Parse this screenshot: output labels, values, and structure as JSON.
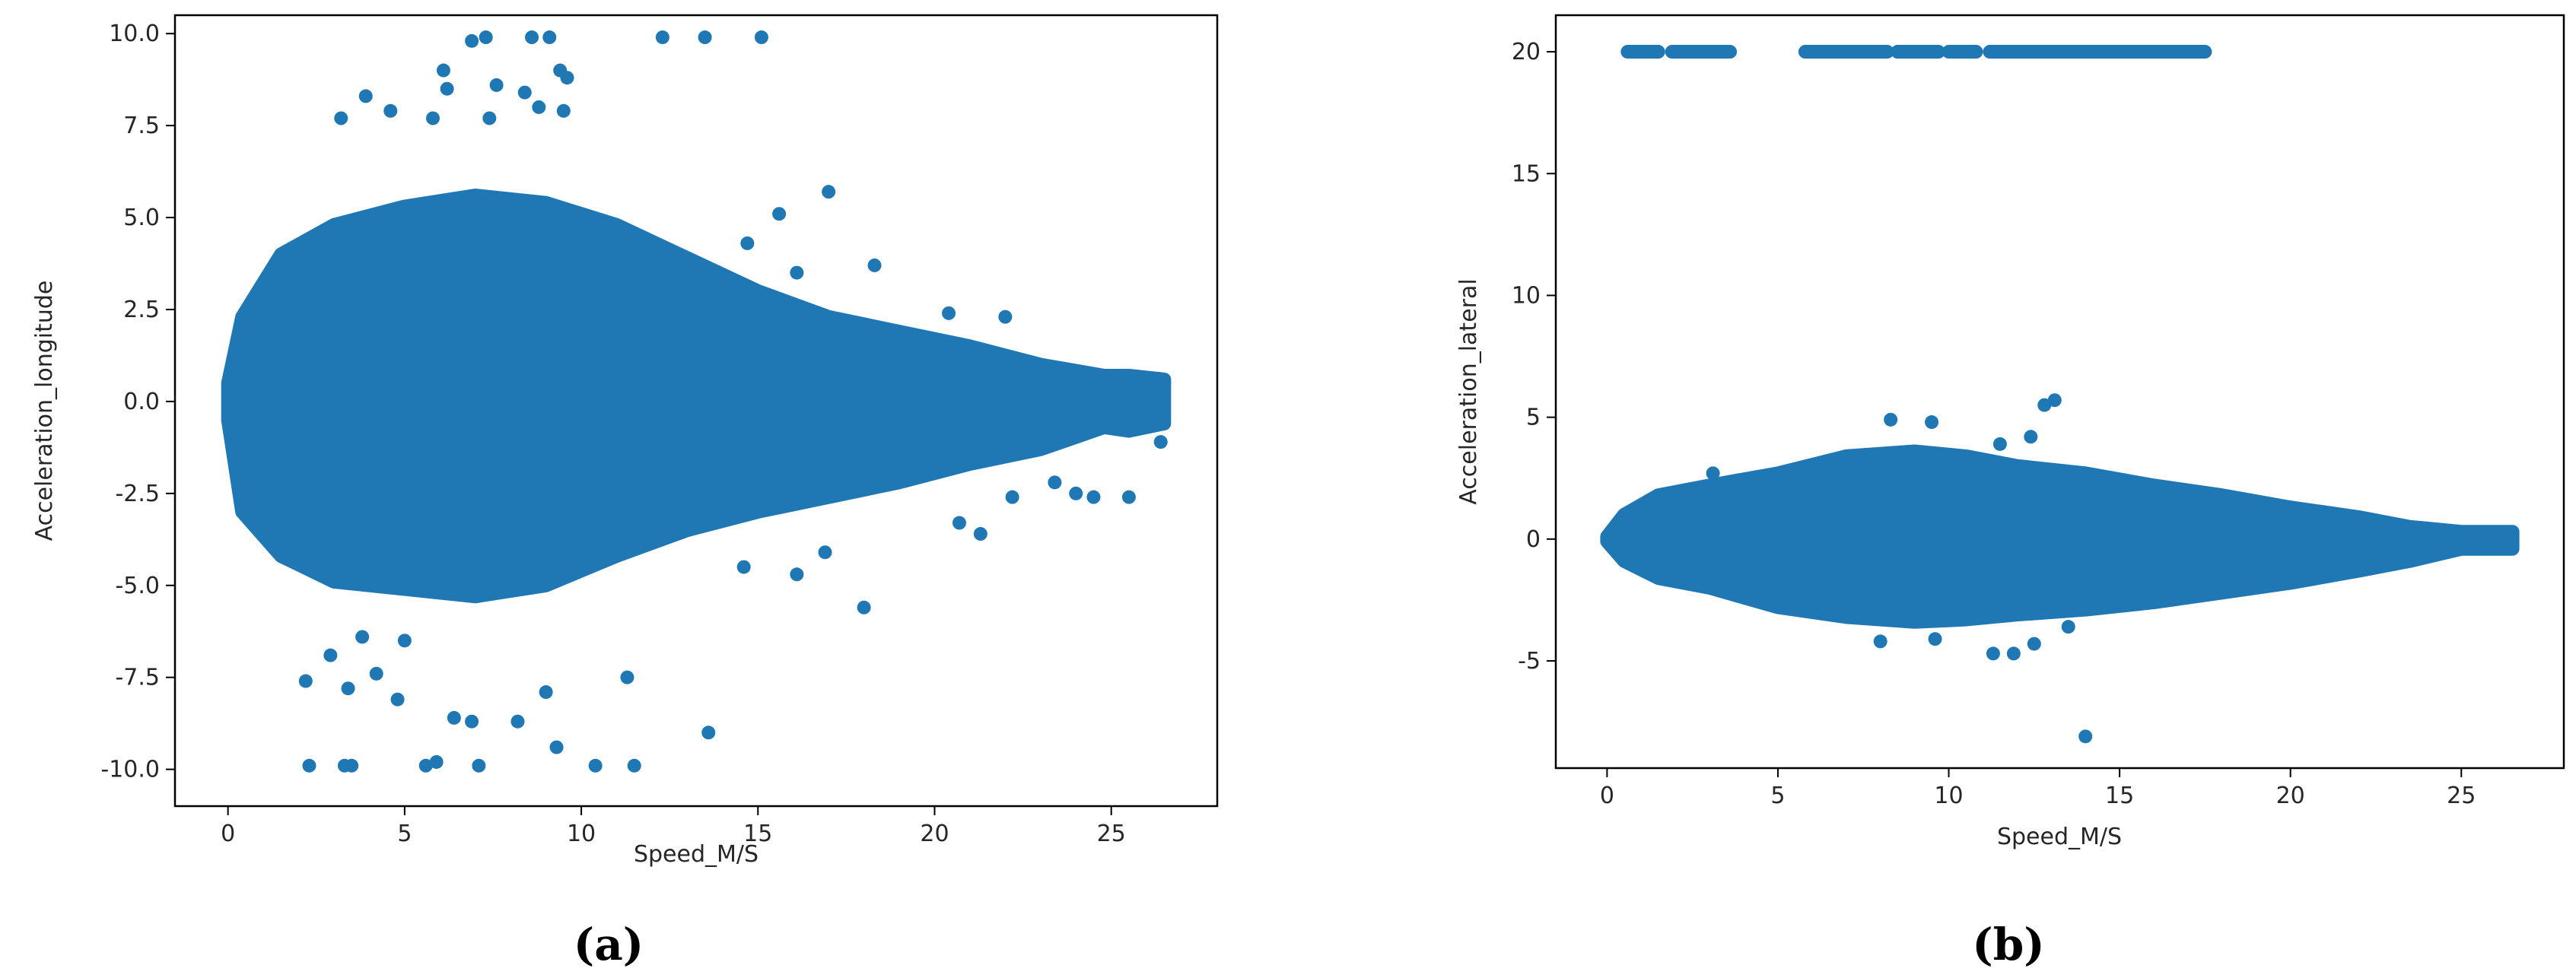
{
  "chart_data": [
    {
      "type": "scatter",
      "panel_label": "(a)",
      "xlabel": "Speed_M/S",
      "ylabel": "Acceleration_longitude",
      "xlim": [
        -1.5,
        28
      ],
      "ylim": [
        -11,
        10.5
      ],
      "xticks": [
        0,
        5,
        10,
        15,
        20,
        25
      ],
      "yticks": [
        -10.0,
        -7.5,
        -5.0,
        -2.5,
        0.0,
        2.5,
        5.0,
        7.5,
        10.0
      ],
      "ytick_labels": [
        "-10.0",
        "-7.5",
        "-5.0",
        "-2.5",
        "0.0",
        "2.5",
        "5.0",
        "7.5",
        "10.0"
      ],
      "color": "#1f77b4",
      "dense_band": {
        "upper": [
          [
            0,
            0.5
          ],
          [
            0.4,
            2.3
          ],
          [
            1.5,
            4.0
          ],
          [
            3,
            4.8
          ],
          [
            5,
            5.3
          ],
          [
            7,
            5.6
          ],
          [
            9,
            5.4
          ],
          [
            11,
            4.8
          ],
          [
            13,
            3.9
          ],
          [
            15,
            3.0
          ],
          [
            17,
            2.3
          ],
          [
            19,
            1.9
          ],
          [
            21,
            1.5
          ],
          [
            23,
            1.0
          ],
          [
            24.8,
            0.7
          ],
          [
            25.5,
            0.7
          ],
          [
            26.5,
            0.6
          ]
        ],
        "lower": [
          [
            0,
            -0.5
          ],
          [
            0.4,
            -3.0
          ],
          [
            1.5,
            -4.2
          ],
          [
            3,
            -4.9
          ],
          [
            5,
            -5.1
          ],
          [
            7,
            -5.3
          ],
          [
            9,
            -5.0
          ],
          [
            11,
            -4.2
          ],
          [
            13,
            -3.5
          ],
          [
            15,
            -3.0
          ],
          [
            17,
            -2.6
          ],
          [
            19,
            -2.2
          ],
          [
            21,
            -1.7
          ],
          [
            23,
            -1.3
          ],
          [
            24.8,
            -0.7
          ],
          [
            25.5,
            -0.8
          ],
          [
            26.5,
            -0.6
          ]
        ]
      },
      "outliers": [
        [
          2.3,
          -9.9
        ],
        [
          3.3,
          -9.9
        ],
        [
          3.5,
          -9.9
        ],
        [
          5.6,
          -9.9
        ],
        [
          5.9,
          -9.8
        ],
        [
          7.1,
          -9.9
        ],
        [
          10.4,
          -9.9
        ],
        [
          11.5,
          -9.9
        ],
        [
          2.2,
          -7.6
        ],
        [
          3.4,
          -7.8
        ],
        [
          4.2,
          -7.4
        ],
        [
          4.8,
          -8.1
        ],
        [
          6.4,
          -8.6
        ],
        [
          6.9,
          -8.7
        ],
        [
          8.2,
          -8.7
        ],
        [
          9.3,
          -9.4
        ],
        [
          11.3,
          -7.5
        ],
        [
          13.6,
          -9.0
        ],
        [
          9.0,
          -7.9
        ],
        [
          5.0,
          -6.5
        ],
        [
          2.9,
          -6.9
        ],
        [
          3.8,
          -6.4
        ],
        [
          12.3,
          9.9
        ],
        [
          13.5,
          9.9
        ],
        [
          15.1,
          9.9
        ],
        [
          6.9,
          9.8
        ],
        [
          7.3,
          9.9
        ],
        [
          8.6,
          9.9
        ],
        [
          9.1,
          9.9
        ],
        [
          6.1,
          9.0
        ],
        [
          9.4,
          9.0
        ],
        [
          9.6,
          8.8
        ],
        [
          6.2,
          8.5
        ],
        [
          7.6,
          8.6
        ],
        [
          8.4,
          8.4
        ],
        [
          3.9,
          8.3
        ],
        [
          3.2,
          7.7
        ],
        [
          4.6,
          7.9
        ],
        [
          5.8,
          7.7
        ],
        [
          7.4,
          7.7
        ],
        [
          8.8,
          8.0
        ],
        [
          9.5,
          7.9
        ],
        [
          14.7,
          4.3
        ],
        [
          15.6,
          5.1
        ],
        [
          17.0,
          5.7
        ],
        [
          18.3,
          3.7
        ],
        [
          16.1,
          3.5
        ],
        [
          20.4,
          2.4
        ],
        [
          22.0,
          2.3
        ],
        [
          18.0,
          -5.6
        ],
        [
          16.1,
          -4.7
        ],
        [
          14.6,
          -4.5
        ],
        [
          16.9,
          -4.1
        ],
        [
          20.7,
          -3.3
        ],
        [
          21.3,
          -3.6
        ],
        [
          22.2,
          -2.6
        ],
        [
          24.0,
          -2.5
        ],
        [
          24.5,
          -2.6
        ],
        [
          23.4,
          -2.2
        ],
        [
          25.5,
          -2.6
        ],
        [
          26.4,
          -1.1
        ],
        [
          26.5,
          0.5
        ]
      ]
    },
    {
      "type": "scatter",
      "panel_label": "(b)",
      "xlabel": "Speed_M/S",
      "ylabel": "Acceleration_lateral",
      "xlim": [
        -1.5,
        28
      ],
      "ylim": [
        -9.4,
        21.5
      ],
      "xticks": [
        0,
        5,
        10,
        15,
        20,
        25
      ],
      "yticks": [
        -5,
        0,
        5,
        10,
        15,
        20
      ],
      "ytick_labels": [
        "-5",
        "0",
        "5",
        "10",
        "15",
        "20"
      ],
      "color": "#1f77b4",
      "dense_band": {
        "upper": [
          [
            0,
            0.1
          ],
          [
            0.5,
            1.0
          ],
          [
            1.5,
            1.8
          ],
          [
            3,
            2.2
          ],
          [
            5,
            2.7
          ],
          [
            7,
            3.4
          ],
          [
            9,
            3.6
          ],
          [
            10.5,
            3.4
          ],
          [
            12,
            3.0
          ],
          [
            14,
            2.7
          ],
          [
            16,
            2.2
          ],
          [
            18,
            1.8
          ],
          [
            20,
            1.3
          ],
          [
            22,
            0.9
          ],
          [
            23.5,
            0.5
          ],
          [
            25,
            0.3
          ],
          [
            26.5,
            0.3
          ]
        ],
        "lower": [
          [
            0,
            -0.1
          ],
          [
            0.5,
            -0.9
          ],
          [
            1.5,
            -1.6
          ],
          [
            3,
            -2.0
          ],
          [
            5,
            -2.8
          ],
          [
            7,
            -3.2
          ],
          [
            9,
            -3.4
          ],
          [
            10.5,
            -3.3
          ],
          [
            12,
            -3.1
          ],
          [
            14,
            -2.9
          ],
          [
            16,
            -2.6
          ],
          [
            18,
            -2.2
          ],
          [
            20,
            -1.8
          ],
          [
            22,
            -1.3
          ],
          [
            23.5,
            -0.9
          ],
          [
            25,
            -0.4
          ],
          [
            26.5,
            -0.4
          ]
        ]
      },
      "top_band": {
        "y": 20,
        "segments": [
          [
            0.6,
            1.5
          ],
          [
            1.9,
            3.6
          ],
          [
            5.8,
            8.2
          ],
          [
            8.5,
            9.7
          ],
          [
            10.0,
            10.8
          ],
          [
            11.2,
            17.5
          ]
        ]
      },
      "outliers": [
        [
          14.0,
          -8.1
        ],
        [
          8.3,
          4.9
        ],
        [
          9.5,
          4.8
        ],
        [
          12.8,
          5.5
        ],
        [
          13.1,
          5.7
        ],
        [
          11.5,
          3.9
        ],
        [
          12.4,
          4.2
        ],
        [
          11.3,
          -4.7
        ],
        [
          11.9,
          -4.7
        ],
        [
          12.5,
          -4.3
        ],
        [
          8.0,
          -4.2
        ],
        [
          9.6,
          -4.1
        ],
        [
          13.5,
          -3.6
        ],
        [
          3.1,
          2.7
        ],
        [
          24.0,
          0.4
        ]
      ]
    }
  ]
}
